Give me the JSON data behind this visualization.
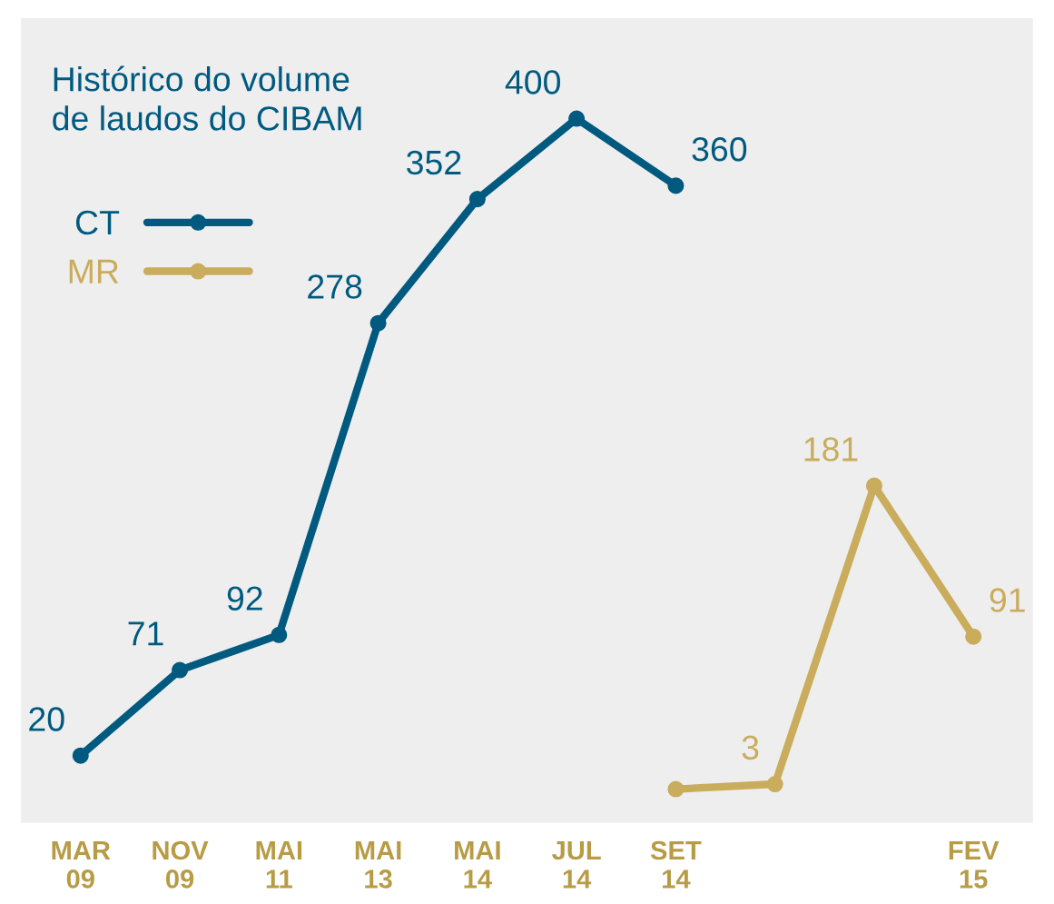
{
  "chart_data": {
    "type": "line",
    "title": "Histórico do volume\nde laudos do CIBAM",
    "categories": [
      "MAR\n09",
      "NOV\n09",
      "MAI\n11",
      "MAI\n13",
      "MAI\n14",
      "JUL\n14",
      "SET\n14",
      null,
      null,
      "FEV\n15"
    ],
    "series": [
      {
        "name": "CT",
        "color": "#005a7f",
        "values": [
          20,
          71,
          92,
          278,
          352,
          400,
          360,
          null,
          null,
          null
        ],
        "value_labels": [
          "20",
          "71",
          "92",
          "278",
          "352",
          "400",
          "360",
          null,
          null,
          null
        ]
      },
      {
        "name": "MR",
        "color": "#c9ac5c",
        "values": [
          null,
          null,
          null,
          null,
          null,
          null,
          0,
          3,
          181,
          91
        ],
        "value_labels": [
          null,
          null,
          null,
          null,
          null,
          null,
          null,
          "3",
          "181",
          "91"
        ]
      }
    ],
    "marker": "circle",
    "line_style": "solid",
    "grid": false,
    "legend": "top left"
  }
}
